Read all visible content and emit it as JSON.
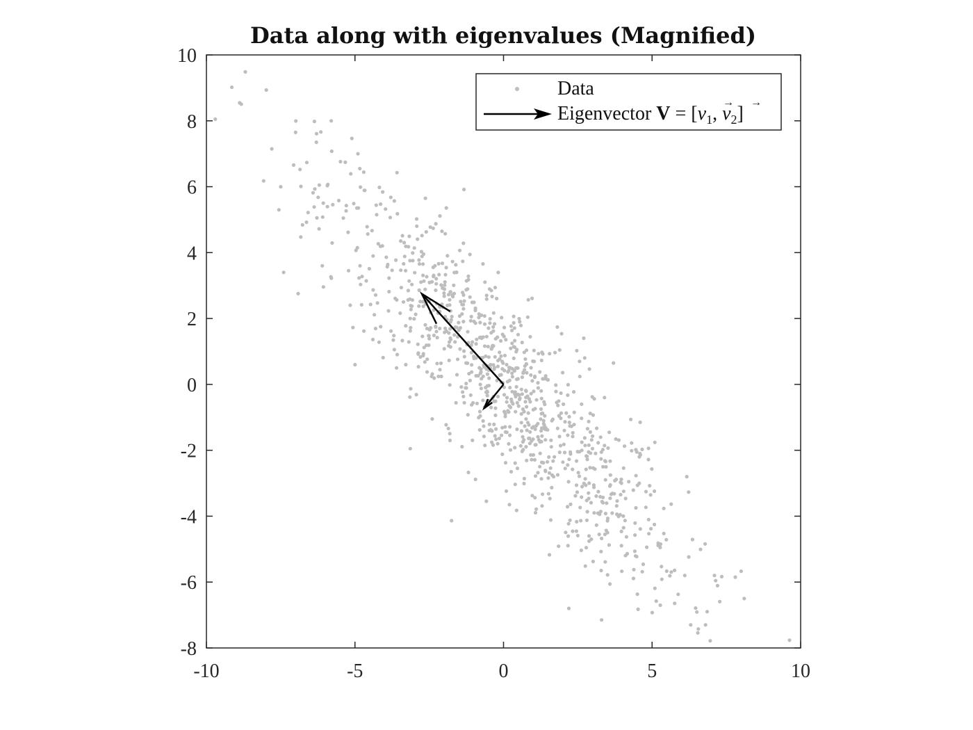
{
  "chart_data": {
    "type": "scatter",
    "title": "Data along with eigenvalues (Magnified)",
    "xlabel": "",
    "ylabel": "",
    "xlim": [
      -10,
      10
    ],
    "ylim": [
      -8,
      10
    ],
    "xticks": [
      -10,
      -5,
      0,
      5,
      10
    ],
    "yticks": [
      -8,
      -6,
      -4,
      -2,
      0,
      2,
      4,
      6,
      8,
      10
    ],
    "grid": false,
    "legend_position": "top-right",
    "colors": {
      "data": "#bdbdbd",
      "arrow": "#000000",
      "axes": "#262626"
    },
    "legend": [
      {
        "label": "Data",
        "marker": "point"
      },
      {
        "label": "Eigenvector V = [v1, v2]",
        "marker": "arrow"
      }
    ],
    "series": [
      {
        "name": "Data",
        "kind": "points",
        "approx_point_count": 1000,
        "center": [
          0,
          0
        ],
        "cov": [
          [
            9.3,
            -8.6
          ],
          [
            -8.6,
            10.0
          ]
        ],
        "sample_outliers": [
          [
            -9.7,
            8.05
          ],
          [
            -7.0,
            7.65
          ],
          [
            -5.8,
            8.0
          ],
          [
            -7.8,
            7.15
          ],
          [
            -6.3,
            7.35
          ],
          [
            -4.9,
            7.0
          ],
          [
            -7.5,
            6.0
          ],
          [
            -6.2,
            6.05
          ],
          [
            -7.4,
            3.4
          ],
          [
            -6.1,
            3.6
          ],
          [
            -5.0,
            0.6
          ],
          [
            -3.6,
            0.5
          ],
          [
            -2.4,
            -1.05
          ],
          [
            -1.8,
            -1.7
          ],
          [
            3.7,
            0.65
          ],
          [
            2.7,
            1.4
          ],
          [
            4.6,
            -1.15
          ],
          [
            6.3,
            -7.3
          ],
          [
            6.8,
            -7.3
          ],
          [
            3.3,
            -7.15
          ],
          [
            2.2,
            -6.8
          ],
          [
            8.1,
            -6.5
          ],
          [
            7.8,
            -5.85
          ],
          [
            7.1,
            -5.8
          ],
          [
            6.1,
            -5.8
          ]
        ]
      },
      {
        "name": "Eigenvector V = [v1, v2]",
        "kind": "arrows",
        "origin": [
          0,
          0
        ],
        "vectors": [
          {
            "id": "v1",
            "end": [
              -2.75,
              2.75
            ]
          },
          {
            "id": "v2",
            "end": [
              -0.65,
              -0.72
            ]
          }
        ]
      }
    ]
  }
}
